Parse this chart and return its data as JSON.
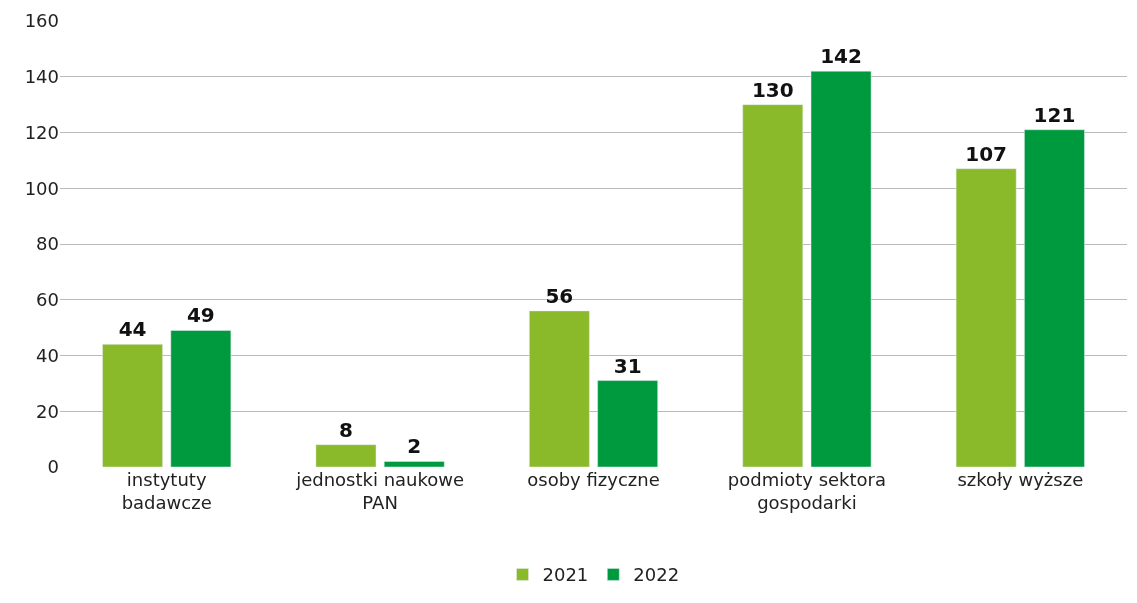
{
  "chart_data": {
    "type": "bar",
    "categories": [
      "instytuty\nbadawcze",
      "jednostki naukowe\nPAN",
      "osoby fizyczne",
      "podmioty sektora\ngospodarki",
      "szkoły wyższe"
    ],
    "series": [
      {
        "name": "2021",
        "color": "#8aba2a",
        "values": [
          44,
          8,
          56,
          130,
          107
        ]
      },
      {
        "name": "2022",
        "color": "#009a3e",
        "values": [
          49,
          2,
          31,
          142,
          121
        ]
      }
    ],
    "ylim": [
      0,
      160
    ],
    "yticks": [
      0,
      20,
      40,
      60,
      80,
      100,
      120,
      140,
      160
    ],
    "grid": "y",
    "legend": "bottom",
    "data_labels": true
  }
}
